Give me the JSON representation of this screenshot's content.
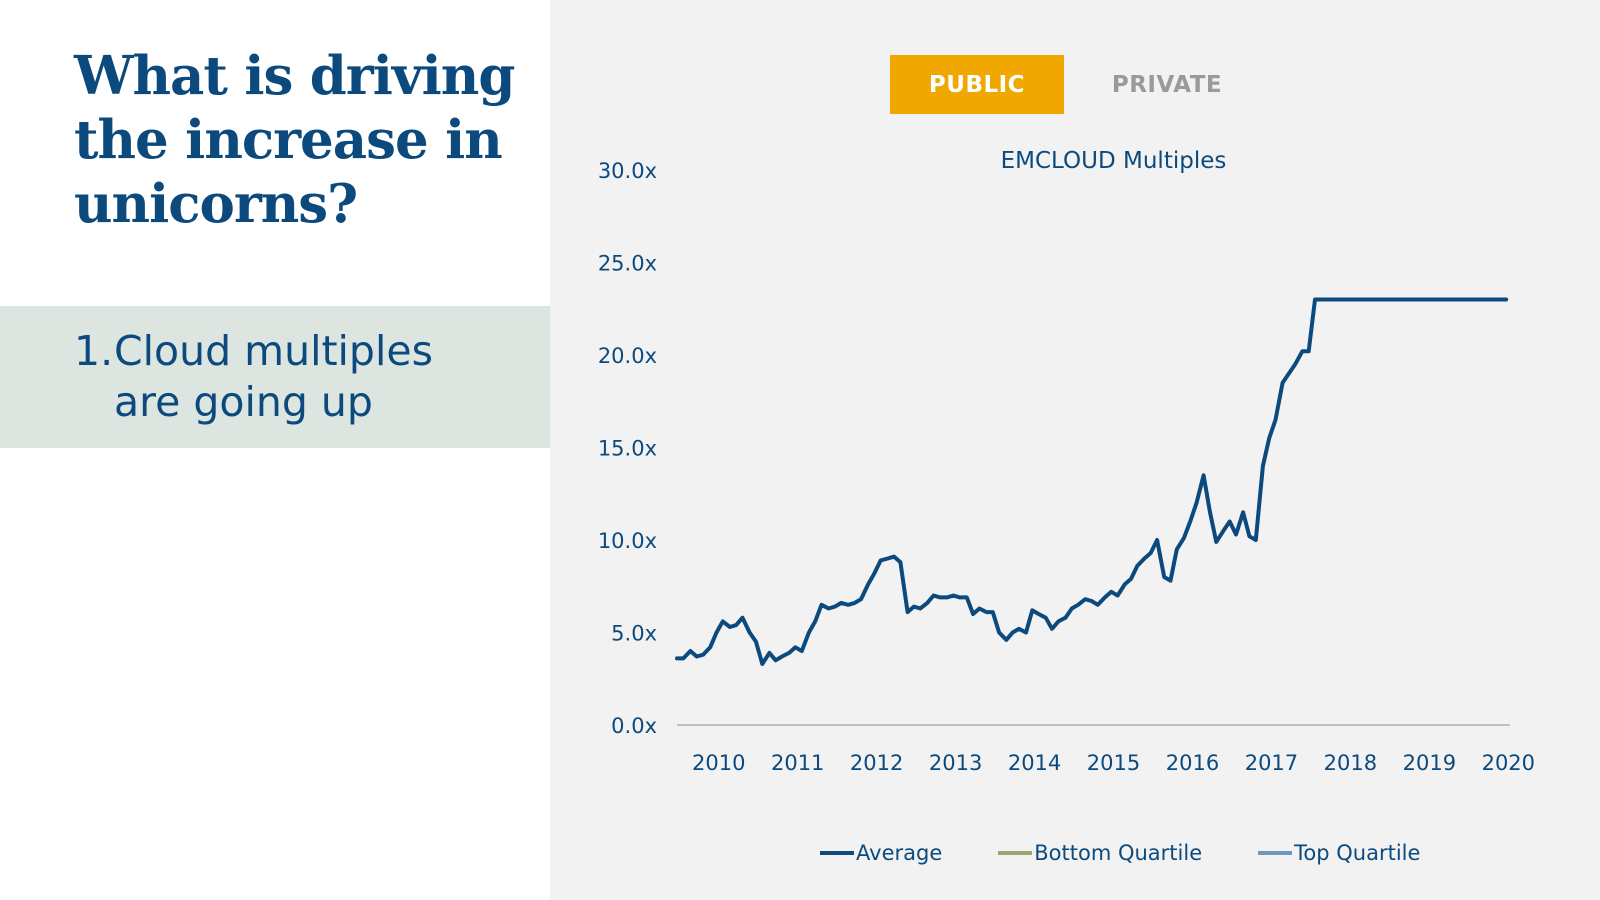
{
  "slide": {
    "title": "What is driving the increase in unicorns?",
    "callout_number": "1.",
    "callout_line1": "Cloud multiples",
    "callout_line2": "are going up"
  },
  "tabs": {
    "public_label": "PUBLIC",
    "private_label": "PRIVATE",
    "active": "PUBLIC"
  },
  "colors": {
    "title": "#0c4a7e",
    "callout_bg": "#dde5e0",
    "tab_active": "#f0a800",
    "tab_inactive_text": "#9a9a9a",
    "panel_bg": "#f2f2f2",
    "average": "#0c4a7e",
    "bottom_quartile": "#9aa86e",
    "top_quartile": "#6e98c0",
    "axis_text": "#0c4a7e",
    "axis_line": "#bfbfbf"
  },
  "chart_data": {
    "type": "line",
    "title": "EMCLOUD Multiples",
    "xlabel": "",
    "ylabel": "",
    "ylim": [
      0,
      30
    ],
    "xlim": [
      2009.75,
      2020.3
    ],
    "yticks": [
      0,
      5,
      10,
      15,
      20,
      25,
      30
    ],
    "ytick_labels": [
      "0.0x",
      "5.0x",
      "10.0x",
      "15.0x",
      "20.0x",
      "25.0x",
      "30.0x"
    ],
    "xtick_labels": [
      "2010",
      "2011",
      "2012",
      "2013",
      "2014",
      "2015",
      "2016",
      "2017",
      "2018",
      "2019",
      "2020"
    ],
    "xtick_values": [
      2010,
      2011,
      2012,
      2013,
      2014,
      2015,
      2016,
      2017,
      2018,
      2019,
      2020
    ],
    "legend_position": "bottom",
    "grid": false,
    "series": [
      {
        "name": "Average",
        "key": "average",
        "x": [
          2009.75,
          2009.83,
          2009.92,
          2010.0,
          2010.08,
          2010.17,
          2010.25,
          2010.33,
          2010.42,
          2010.5,
          2010.58,
          2010.67,
          2010.75,
          2010.83,
          2010.92,
          2011.0,
          2011.08,
          2011.17,
          2011.25,
          2011.33,
          2011.42,
          2011.5,
          2011.58,
          2011.67,
          2011.75,
          2011.83,
          2011.92,
          2012.0,
          2012.08,
          2012.17,
          2012.25,
          2012.33,
          2012.42,
          2012.5,
          2012.58,
          2012.67,
          2012.75,
          2012.83,
          2012.92,
          2013.0,
          2013.08,
          2013.17,
          2013.25,
          2013.33,
          2013.42,
          2013.5,
          2013.58,
          2013.67,
          2013.75,
          2013.83,
          2013.92,
          2014.0,
          2014.08,
          2014.17,
          2014.25,
          2014.33,
          2014.42,
          2014.5,
          2014.58,
          2014.67,
          2014.75,
          2014.83,
          2014.92,
          2015.0,
          2015.08,
          2015.17,
          2015.25,
          2015.33,
          2015.42,
          2015.5,
          2015.58,
          2015.67,
          2015.75,
          2015.83,
          2015.92,
          2016.0,
          2016.08,
          2016.17,
          2016.25,
          2016.33,
          2016.42,
          2016.5,
          2016.58,
          2016.67,
          2016.75,
          2016.83,
          2016.92,
          2017.0,
          2017.08,
          2017.17,
          2017.25,
          2017.33,
          2017.42,
          2017.5,
          2017.58,
          2017.67,
          2017.75,
          2017.83,
          2017.92,
          2018.0,
          2018.08,
          2018.17,
          2018.25,
          2018.33,
          2018.42,
          2018.5,
          2018.58,
          2018.67,
          2018.75,
          2018.83,
          2018.92,
          2019.0,
          2019.08,
          2019.17,
          2019.25,
          2019.33,
          2019.42,
          2019.5,
          2019.58,
          2019.67,
          2019.75,
          2019.83,
          2019.92,
          2020.0,
          2020.08,
          2020.17,
          2020.25
        ],
        "values": [
          3.6,
          3.6,
          4.0,
          3.7,
          3.8,
          4.2,
          5.0,
          5.6,
          5.3,
          5.4,
          5.8,
          5.0,
          4.5,
          3.3,
          3.9,
          3.5,
          3.7,
          3.9,
          4.2,
          4.0,
          5.0,
          5.6,
          6.5,
          6.3,
          6.4,
          6.6,
          6.5,
          6.6,
          6.8,
          7.6,
          8.2,
          8.9,
          9.0,
          9.1,
          8.8,
          6.1,
          6.4,
          6.3,
          6.6,
          7.0,
          6.9,
          6.9,
          7.0,
          6.9,
          6.9,
          6.0,
          6.3,
          6.1,
          6.1,
          5.0,
          4.6,
          5.0,
          5.2,
          5.0,
          6.2,
          6.0,
          5.8,
          5.2,
          5.6,
          5.8,
          6.3,
          6.5,
          6.8,
          6.7,
          6.5,
          6.9,
          7.2,
          7.0,
          7.6,
          7.9,
          8.6,
          9.0,
          9.3,
          10.0,
          8.0,
          7.8,
          9.5,
          10.1,
          11.0,
          12.0,
          13.5,
          11.5,
          9.9,
          10.5,
          11.0,
          10.3,
          11.5,
          10.2,
          10.0,
          14.0,
          15.5,
          16.5,
          18.5,
          19.0,
          19.5,
          20.2,
          20.2,
          23.0,
          23.0,
          23.0,
          23.0,
          23.0,
          23.0,
          23.0,
          23.0,
          23.0,
          23.0,
          23.0,
          23.0,
          23.0,
          23.0,
          23.0,
          23.0,
          23.0,
          23.0,
          23.0,
          23.0,
          23.0,
          23.0,
          23.0,
          23.0,
          23.0,
          23.0,
          23.0,
          23.0,
          23.0,
          23.0
        ]
      },
      {
        "name": "Bottom Quartile",
        "key": "bottom_quartile",
        "x": [],
        "values": []
      },
      {
        "name": "Top Quartile",
        "key": "top_quartile",
        "x": [],
        "values": []
      }
    ]
  }
}
